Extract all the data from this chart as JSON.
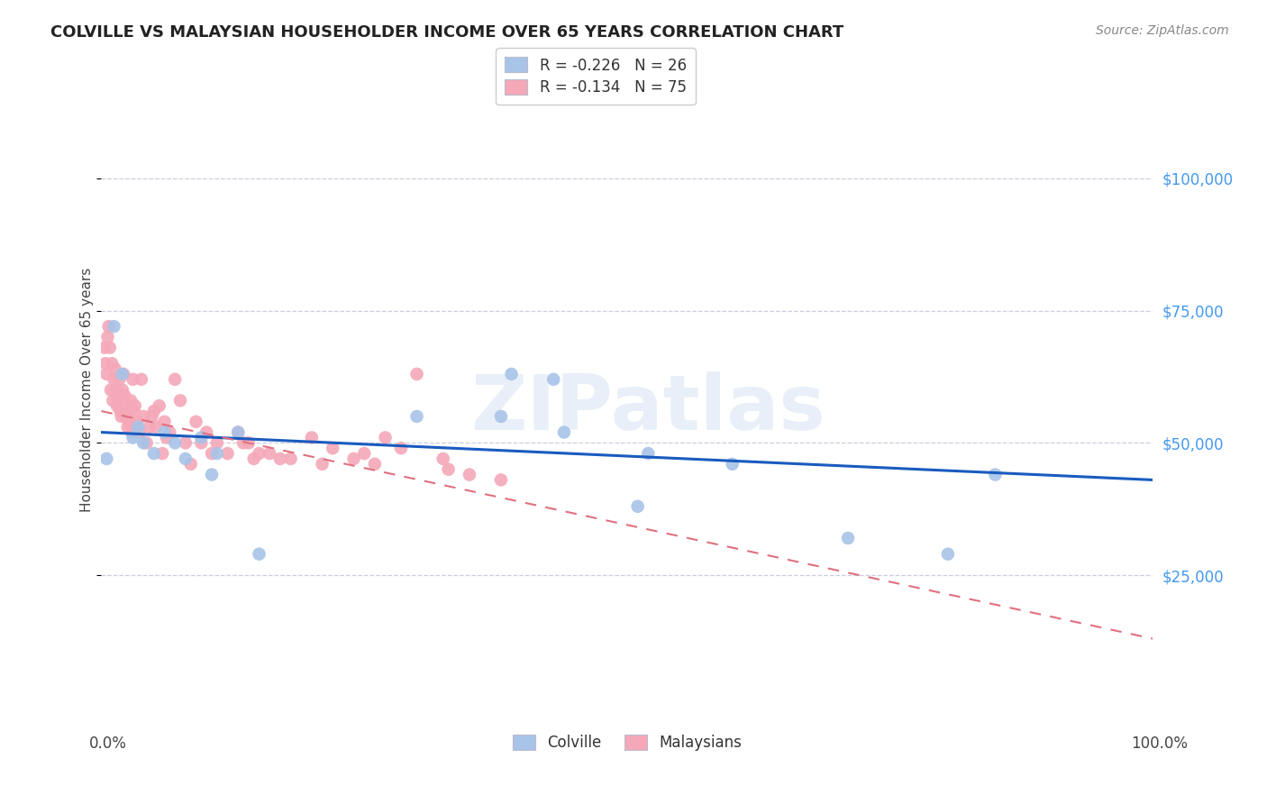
{
  "title": "COLVILLE VS MALAYSIAN HOUSEHOLDER INCOME OVER 65 YEARS CORRELATION CHART",
  "source": "Source: ZipAtlas.com",
  "ylabel": "Householder Income Over 65 years",
  "ytick_labels": [
    "$25,000",
    "$50,000",
    "$75,000",
    "$100,000"
  ],
  "ytick_values": [
    25000,
    50000,
    75000,
    100000
  ],
  "ylim": [
    0,
    120000
  ],
  "xlim": [
    0,
    100
  ],
  "colville_R": -0.226,
  "colville_N": 26,
  "malaysian_R": -0.134,
  "malaysian_N": 75,
  "colville_color": "#a8c4e8",
  "malaysian_color": "#f4a8b8",
  "colville_line_color": "#1a5bbf",
  "malaysian_line_color": "#e07080",
  "background_color": "#ffffff",
  "grid_color": "#ccccdd",
  "title_color": "#222222",
  "source_color": "#888888",
  "right_label_color": "#4499ee",
  "watermark": "ZIPatlas",
  "colville_x": [
    0.5,
    1.2,
    2.0,
    3.0,
    3.5,
    4.0,
    5.0,
    6.0,
    7.0,
    8.0,
    9.5,
    10.5,
    11.0,
    13.0,
    15.0,
    30.0,
    38.0,
    39.0,
    43.0,
    44.0,
    51.0,
    52.0,
    60.0,
    71.0,
    80.5,
    85.0
  ],
  "colville_y": [
    47000,
    72000,
    63000,
    51000,
    53000,
    50000,
    48000,
    52000,
    50000,
    47000,
    51000,
    44000,
    48000,
    52000,
    29000,
    55000,
    55000,
    63000,
    62000,
    52000,
    38000,
    48000,
    46000,
    32000,
    29000,
    44000
  ],
  "malaysian_x": [
    0.3,
    0.4,
    0.5,
    0.6,
    0.7,
    0.8,
    0.9,
    1.0,
    1.1,
    1.2,
    1.3,
    1.4,
    1.5,
    1.6,
    1.7,
    1.8,
    1.9,
    2.0,
    2.1,
    2.2,
    2.3,
    2.4,
    2.5,
    2.6,
    2.7,
    2.8,
    2.9,
    3.0,
    3.1,
    3.2,
    3.4,
    3.6,
    3.8,
    4.0,
    4.3,
    4.6,
    5.0,
    5.5,
    6.0,
    6.5,
    7.0,
    7.5,
    8.0,
    9.0,
    10.0,
    11.0,
    12.0,
    13.0,
    14.0,
    15.0,
    17.0,
    20.0,
    22.0,
    25.0,
    27.0,
    30.0,
    32.5,
    8.5,
    9.5,
    10.5,
    4.8,
    5.2,
    5.8,
    6.2,
    13.5,
    14.5,
    16.0,
    18.0,
    21.0,
    24.0,
    26.0,
    28.5,
    33.0,
    35.0,
    38.0
  ],
  "malaysian_y": [
    68000,
    65000,
    63000,
    70000,
    72000,
    68000,
    60000,
    65000,
    58000,
    62000,
    64000,
    60000,
    57000,
    58000,
    62000,
    56000,
    55000,
    60000,
    63000,
    59000,
    55000,
    57000,
    53000,
    56000,
    54000,
    58000,
    52000,
    62000,
    56000,
    57000,
    54000,
    52000,
    62000,
    55000,
    50000,
    53000,
    56000,
    57000,
    54000,
    52000,
    62000,
    58000,
    50000,
    54000,
    52000,
    50000,
    48000,
    52000,
    50000,
    48000,
    47000,
    51000,
    49000,
    48000,
    51000,
    63000,
    47000,
    46000,
    50000,
    48000,
    55000,
    53000,
    48000,
    51000,
    50000,
    47000,
    48000,
    47000,
    46000,
    47000,
    46000,
    49000,
    45000,
    44000,
    43000
  ]
}
